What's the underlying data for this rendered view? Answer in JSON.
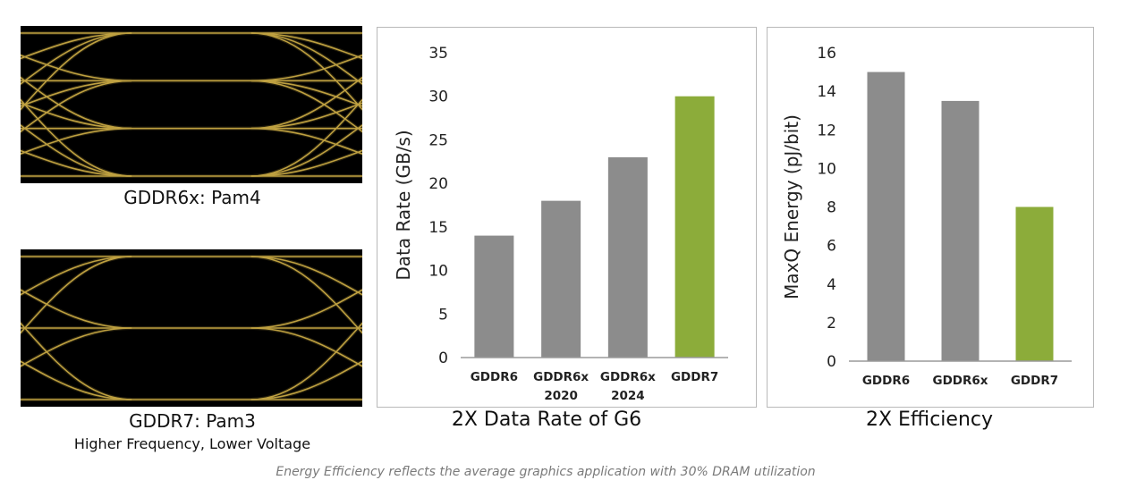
{
  "eye_diagrams": [
    {
      "caption": "GDDR6x: Pam4",
      "subcaption": "",
      "levels": 4
    },
    {
      "caption": "GDDR7: Pam3",
      "subcaption": "Higher Frequency, Lower Voltage",
      "levels": 3
    }
  ],
  "colors": {
    "bar_gray": "#8c8c8c",
    "bar_green": "#8cac3a",
    "eye_trace": "#d9b74a",
    "eye_background": "#000000",
    "footnote": "#7a7a7a"
  },
  "chart_data": [
    {
      "type": "bar",
      "title": "2X Data Rate of G6",
      "ylabel": "Data Rate (GB/s)",
      "xlabel": "",
      "categories": [
        [
          "GDDR6"
        ],
        [
          "GDDR6x",
          "2020"
        ],
        [
          "GDDR6x",
          "2024"
        ],
        [
          "GDDR7"
        ]
      ],
      "values": [
        14,
        18,
        23,
        30
      ],
      "highlight": [
        false,
        false,
        false,
        true
      ],
      "ylim": [
        0,
        35
      ],
      "yticks": [
        0,
        5,
        10,
        15,
        20,
        25,
        30,
        35
      ],
      "grid": false,
      "legend": "none"
    },
    {
      "type": "bar",
      "title": "2X Efficiency",
      "ylabel": "MaxQ Energy (pJ/bit)",
      "xlabel": "",
      "categories": [
        [
          "GDDR6"
        ],
        [
          "GDDR6x"
        ],
        [
          "GDDR7"
        ]
      ],
      "values": [
        15,
        13.5,
        8
      ],
      "highlight": [
        false,
        false,
        true
      ],
      "ylim": [
        0,
        16
      ],
      "yticks": [
        0,
        2,
        4,
        6,
        8,
        10,
        12,
        14,
        16
      ],
      "grid": false,
      "legend": "none"
    }
  ],
  "footnote": "Energy Efficiency reflects the average graphics application with 30% DRAM utilization"
}
